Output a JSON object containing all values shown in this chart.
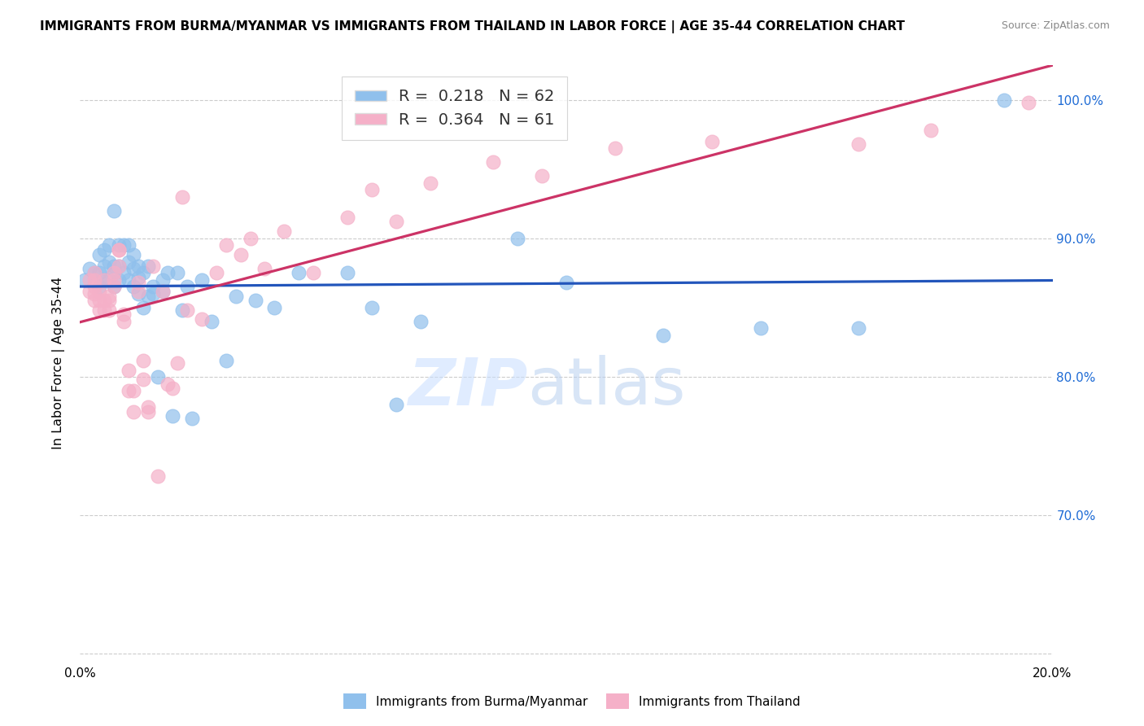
{
  "title": "IMMIGRANTS FROM BURMA/MYANMAR VS IMMIGRANTS FROM THAILAND IN LABOR FORCE | AGE 35-44 CORRELATION CHART",
  "source": "Source: ZipAtlas.com",
  "ylabel": "In Labor Force | Age 35-44",
  "xlim": [
    0.0,
    0.2
  ],
  "ylim": [
    0.595,
    1.025
  ],
  "xticks": [
    0.0,
    0.04,
    0.08,
    0.12,
    0.16,
    0.2
  ],
  "xticklabels": [
    "0.0%",
    "",
    "",
    "",
    "",
    "20.0%"
  ],
  "yticks": [
    0.6,
    0.7,
    0.8,
    0.9,
    1.0
  ],
  "yticklabels_right": [
    "",
    "70.0%",
    "80.0%",
    "90.0%",
    "100.0%"
  ],
  "blue_R": 0.218,
  "blue_N": 62,
  "pink_R": 0.364,
  "pink_N": 61,
  "blue_color": "#90C0EC",
  "pink_color": "#F5B0C8",
  "blue_line_color": "#2255BB",
  "pink_line_color": "#CC3366",
  "legend_label_blue": "Immigrants from Burma/Myanmar",
  "legend_label_pink": "Immigrants from Thailand",
  "watermark_zip": "ZIP",
  "watermark_atlas": "atlas",
  "blue_scatter_x": [
    0.001,
    0.002,
    0.003,
    0.004,
    0.004,
    0.004,
    0.005,
    0.005,
    0.005,
    0.006,
    0.006,
    0.006,
    0.007,
    0.007,
    0.007,
    0.007,
    0.008,
    0.008,
    0.008,
    0.009,
    0.009,
    0.01,
    0.01,
    0.01,
    0.011,
    0.011,
    0.011,
    0.012,
    0.012,
    0.012,
    0.013,
    0.013,
    0.014,
    0.014,
    0.015,
    0.015,
    0.016,
    0.017,
    0.017,
    0.018,
    0.019,
    0.02,
    0.021,
    0.022,
    0.023,
    0.025,
    0.027,
    0.03,
    0.032,
    0.036,
    0.04,
    0.045,
    0.055,
    0.06,
    0.065,
    0.07,
    0.09,
    0.1,
    0.12,
    0.14,
    0.16,
    0.19
  ],
  "blue_scatter_y": [
    0.87,
    0.878,
    0.875,
    0.865,
    0.875,
    0.888,
    0.87,
    0.88,
    0.892,
    0.87,
    0.883,
    0.895,
    0.865,
    0.875,
    0.88,
    0.92,
    0.87,
    0.88,
    0.895,
    0.875,
    0.895,
    0.87,
    0.883,
    0.895,
    0.865,
    0.878,
    0.888,
    0.86,
    0.872,
    0.88,
    0.85,
    0.875,
    0.858,
    0.88,
    0.86,
    0.865,
    0.8,
    0.862,
    0.87,
    0.875,
    0.772,
    0.875,
    0.848,
    0.865,
    0.77,
    0.87,
    0.84,
    0.812,
    0.858,
    0.855,
    0.85,
    0.875,
    0.875,
    0.85,
    0.78,
    0.84,
    0.9,
    0.868,
    0.83,
    0.835,
    0.835,
    1.0
  ],
  "pink_scatter_x": [
    0.002,
    0.002,
    0.003,
    0.003,
    0.003,
    0.003,
    0.003,
    0.004,
    0.004,
    0.004,
    0.005,
    0.005,
    0.005,
    0.006,
    0.006,
    0.006,
    0.007,
    0.007,
    0.007,
    0.008,
    0.008,
    0.008,
    0.009,
    0.009,
    0.01,
    0.01,
    0.011,
    0.011,
    0.012,
    0.012,
    0.013,
    0.013,
    0.014,
    0.014,
    0.015,
    0.016,
    0.017,
    0.018,
    0.019,
    0.02,
    0.021,
    0.022,
    0.025,
    0.028,
    0.03,
    0.033,
    0.035,
    0.038,
    0.042,
    0.048,
    0.055,
    0.06,
    0.065,
    0.072,
    0.085,
    0.095,
    0.11,
    0.13,
    0.16,
    0.175,
    0.195
  ],
  "pink_scatter_y": [
    0.862,
    0.87,
    0.855,
    0.86,
    0.865,
    0.87,
    0.875,
    0.848,
    0.855,
    0.862,
    0.848,
    0.855,
    0.87,
    0.848,
    0.855,
    0.858,
    0.865,
    0.87,
    0.875,
    0.88,
    0.892,
    0.892,
    0.84,
    0.845,
    0.79,
    0.805,
    0.775,
    0.79,
    0.862,
    0.868,
    0.812,
    0.798,
    0.775,
    0.778,
    0.88,
    0.728,
    0.862,
    0.795,
    0.792,
    0.81,
    0.93,
    0.848,
    0.842,
    0.875,
    0.895,
    0.888,
    0.9,
    0.878,
    0.905,
    0.875,
    0.915,
    0.935,
    0.912,
    0.94,
    0.955,
    0.945,
    0.965,
    0.97,
    0.968,
    0.978,
    0.998
  ]
}
